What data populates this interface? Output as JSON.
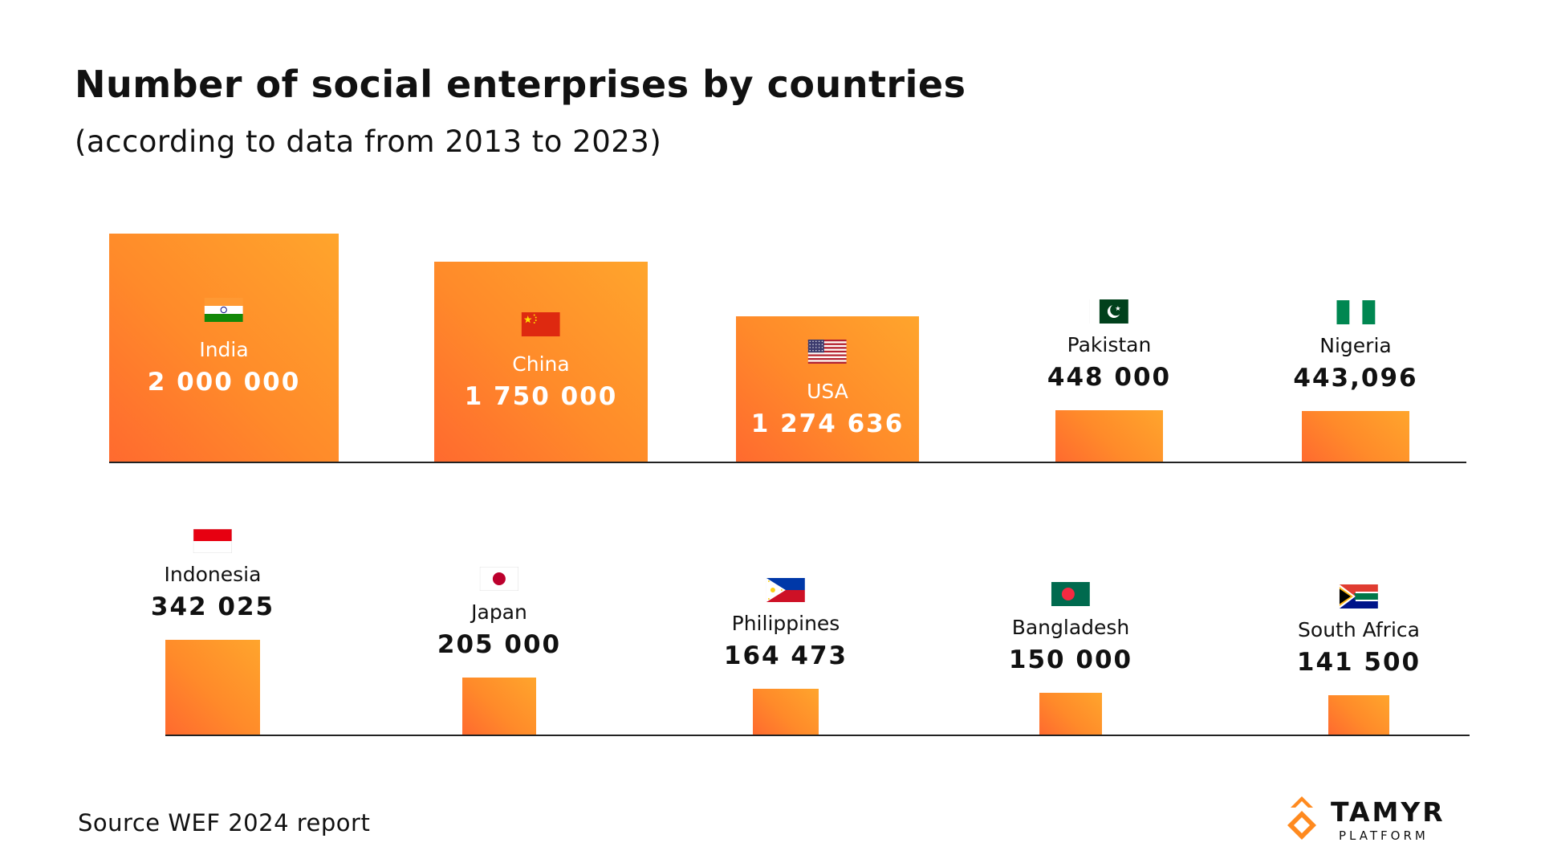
{
  "title": "Number of social enterprises by countries",
  "subtitle": "(according to data from 2013 to 2023)",
  "source": "Source WEF 2024 report",
  "logo": {
    "name": "TAMYR",
    "sub": "PLATFORM"
  },
  "colors": {
    "bar_start": "#ff6a2f",
    "bar_end": "#ffa52c",
    "text": "#111111"
  },
  "chart_data": [
    {
      "type": "bar",
      "categories": [
        "India",
        "China",
        "USA",
        "Pakistan",
        "Nigeria"
      ],
      "value_labels": [
        "2 000 000",
        "1 750 000",
        "1 274 636",
        "448 000",
        "443,096"
      ],
      "values": [
        2000000,
        1750000,
        1274636,
        448000,
        443096
      ],
      "flags": [
        "india-flag",
        "china-flag",
        "usa-flag",
        "pakistan-flag",
        "nigeria-flag"
      ]
    },
    {
      "type": "bar",
      "categories": [
        "Indonesia",
        "Japan",
        "Philippines",
        "Bangladesh",
        "South Africa"
      ],
      "value_labels": [
        "342 025",
        "205 000",
        "164 473",
        "150 000",
        "141 500"
      ],
      "values": [
        342025,
        205000,
        164473,
        150000,
        141500
      ],
      "flags": [
        "indonesia-flag",
        "japan-flag",
        "philippines-flag",
        "bangladesh-flag",
        "south-africa-flag"
      ]
    }
  ]
}
